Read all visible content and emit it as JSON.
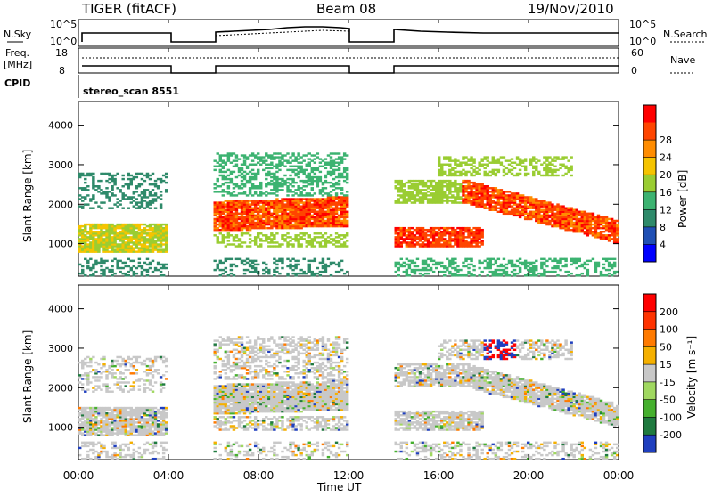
{
  "header": {
    "station": "TIGER (fitACF)",
    "beam": "Beam 08",
    "date": "19/Nov/2010"
  },
  "top_panels": {
    "nsky_label": "N.Sky",
    "nsky_ticks": [
      "10^5",
      "10^0"
    ],
    "nsearch_label": "N.Search",
    "nsearch_ticks": [
      "10^5",
      "10^0"
    ],
    "freq_label_1": "Freq.",
    "freq_label_2": "[MHz]",
    "freq_ticks": [
      "18",
      "8"
    ],
    "nave_label": "Nave",
    "nave_ticks": [
      "60",
      "0"
    ],
    "cpid_label": "CPID",
    "cpid_value": "stereo_scan 8551"
  },
  "chart_data": [
    {
      "type": "heatmap",
      "name": "power-panel",
      "ylabel": "Slant Range [km]",
      "y_ticks": [
        "1000",
        "2000",
        "3000",
        "4000"
      ],
      "colorbar": {
        "label": "Power [dB]",
        "ticks": [
          "4",
          "8",
          "12",
          "16",
          "20",
          "24",
          "28"
        ],
        "colors": [
          "#0000ff",
          "#1f4fb4",
          "#2e8a6a",
          "#3cb371",
          "#9acd32",
          "#f5c400",
          "#ff8c00",
          "#ff4500",
          "#ff0000"
        ]
      },
      "data_gaps_ut": [
        [
          4,
          6
        ],
        [
          12,
          14
        ]
      ],
      "features": [
        {
          "x": [
            0,
            4
          ],
          "y": [
            800,
            1500
          ],
          "level": "12-20 dB"
        },
        {
          "x": [
            6,
            12
          ],
          "y": [
            1300,
            2100
          ],
          "level": "20-28 dB"
        },
        {
          "x": [
            14,
            24
          ],
          "y": [
            900,
            2300
          ],
          "level": "16-28 dB"
        }
      ]
    },
    {
      "type": "heatmap",
      "name": "velocity-panel",
      "ylabel": "Slant Range [km]",
      "y_ticks": [
        "1000",
        "2000",
        "3000",
        "4000"
      ],
      "xlabel": "Time UT",
      "x_ticks": [
        "00:00",
        "04:00",
        "08:00",
        "12:00",
        "16:00",
        "20:00",
        "00:00"
      ],
      "x_range_hours": [
        0,
        24
      ],
      "colorbar": {
        "label": "Velocity [m s⁻¹]",
        "ticks": [
          "200",
          "100",
          "50",
          "15",
          "-15",
          "-50",
          "-100",
          "-200"
        ],
        "colors": [
          "#1f3fbf",
          "#1f7a3f",
          "#45b02e",
          "#a0d860",
          "#c8c8c8",
          "#f5b000",
          "#ff7a00",
          "#ff3300",
          "#ff0000"
        ]
      },
      "data_gaps_ut": [
        [
          4,
          6
        ],
        [
          12,
          14
        ]
      ],
      "features": [
        {
          "x": [
            0,
            24
          ],
          "y": [
            600,
            2300
          ],
          "level": "-15 to 15 m/s"
        },
        {
          "x": [
            18,
            19.5
          ],
          "y": [
            2600,
            3200
          ],
          "level": "> 100 m/s"
        }
      ]
    }
  ]
}
